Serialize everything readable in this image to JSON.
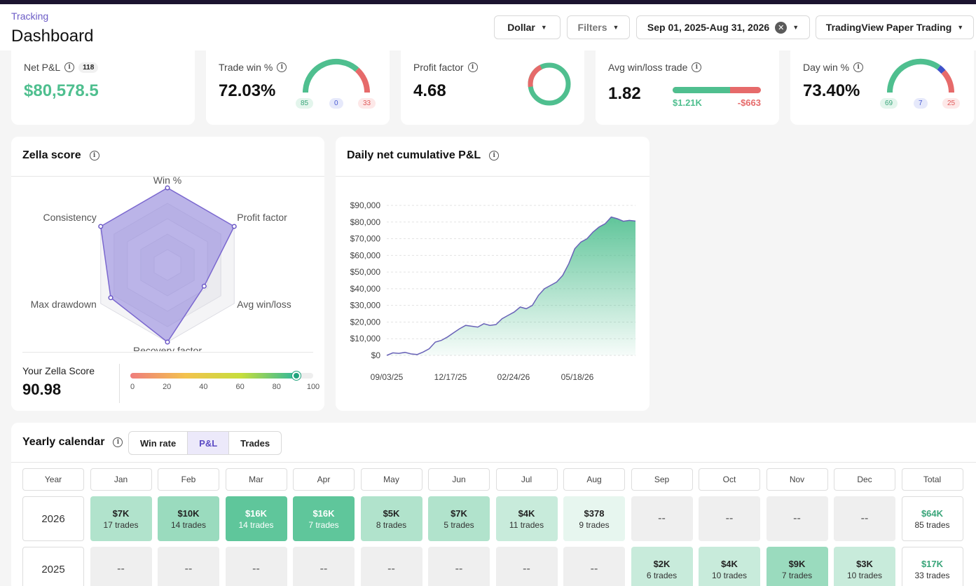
{
  "header": {
    "breadcrumb": "Tracking",
    "title": "Dashboard",
    "currency": "Dollar",
    "filters": "Filters",
    "date_range": "Sep 01, 2025-Aug 31, 2026",
    "account": "TradingView Paper Trading"
  },
  "stats": {
    "net_pnl": {
      "label": "Net P&L",
      "count": "118",
      "value": "$80,578.5"
    },
    "trade_win": {
      "label": "Trade win %",
      "value": "72.03%",
      "wins": "85",
      "breakeven": "0",
      "losses": "33",
      "win_fraction": 0.72
    },
    "profit_factor": {
      "label": "Profit factor",
      "value": "4.68",
      "profit_fraction": 0.82
    },
    "avg_win_loss": {
      "label": "Avg win/loss trade",
      "value": "1.82",
      "avg_win": "$1.21K",
      "avg_loss": "-$663",
      "win_fraction": 0.65
    },
    "day_win": {
      "label": "Day win %",
      "value": "73.40%",
      "wins": "69",
      "breakeven": "7",
      "losses": "25"
    }
  },
  "zella": {
    "title": "Zella score",
    "axes": [
      "Win %",
      "Profit factor",
      "Avg win/loss",
      "Recovery factor",
      "Max drawdown",
      "Consistency"
    ],
    "values": [
      1.0,
      1.0,
      0.55,
      1.0,
      0.85,
      1.0
    ],
    "score_label": "Your Zella Score",
    "score": "90.98",
    "score_value": 90.98,
    "scale_ticks": [
      "0",
      "20",
      "40",
      "60",
      "80",
      "100"
    ]
  },
  "chart_data": {
    "type": "area",
    "title": "Daily net cumulative P&L",
    "x_tick_labels": [
      "09/03/25",
      "12/17/25",
      "02/24/26",
      "05/18/26"
    ],
    "y_tick_labels": [
      "$0",
      "$10,000",
      "$20,000",
      "$30,000",
      "$40,000",
      "$50,000",
      "$60,000",
      "$70,000",
      "$80,000",
      "$90,000"
    ],
    "ylim": [
      0,
      90000
    ],
    "grid": true,
    "series": [
      {
        "values": [
          0,
          1500,
          1200,
          1800,
          900,
          500,
          2000,
          4000,
          8000,
          9000,
          11000,
          13500,
          16000,
          18000,
          17500,
          17000,
          19000,
          18000,
          18500,
          22000,
          24000,
          26000,
          29000,
          28000,
          30000,
          36000,
          40000,
          42000,
          44000,
          48000,
          55000,
          64000,
          68000,
          70000,
          74000,
          77000,
          79000,
          83000,
          82000,
          80500,
          81000,
          80578.5
        ]
      }
    ]
  },
  "calendar": {
    "title": "Yearly calendar",
    "toggles": [
      "Win rate",
      "P&L",
      "Trades"
    ],
    "active_toggle": "P&L",
    "columns": [
      "Year",
      "Jan",
      "Feb",
      "Mar",
      "Apr",
      "May",
      "Jun",
      "Jul",
      "Aug",
      "Sep",
      "Oct",
      "Nov",
      "Dec",
      "Total"
    ],
    "rows": [
      {
        "year": "2026",
        "cells": [
          {
            "value": "$7K",
            "trades": "17 trades",
            "tone": 2
          },
          {
            "value": "$10K",
            "trades": "14 trades",
            "tone": 3
          },
          {
            "value": "$16K",
            "trades": "14 trades",
            "tone": 5
          },
          {
            "value": "$16K",
            "trades": "7 trades",
            "tone": 5
          },
          {
            "value": "$5K",
            "trades": "8 trades",
            "tone": 2
          },
          {
            "value": "$7K",
            "trades": "5 trades",
            "tone": 2
          },
          {
            "value": "$4K",
            "trades": "11 trades",
            "tone": 1
          },
          {
            "value": "$378",
            "trades": "9 trades",
            "tone": 0
          },
          {
            "value": "--",
            "trades": "",
            "tone": -1
          },
          {
            "value": "--",
            "trades": "",
            "tone": -1
          },
          {
            "value": "--",
            "trades": "",
            "tone": -1
          },
          {
            "value": "--",
            "trades": "",
            "tone": -1
          }
        ],
        "total": {
          "value": "$64K",
          "trades": "85 trades"
        }
      },
      {
        "year": "2025",
        "cells": [
          {
            "value": "--",
            "trades": "",
            "tone": -1
          },
          {
            "value": "--",
            "trades": "",
            "tone": -1
          },
          {
            "value": "--",
            "trades": "",
            "tone": -1
          },
          {
            "value": "--",
            "trades": "",
            "tone": -1
          },
          {
            "value": "--",
            "trades": "",
            "tone": -1
          },
          {
            "value": "--",
            "trades": "",
            "tone": -1
          },
          {
            "value": "--",
            "trades": "",
            "tone": -1
          },
          {
            "value": "--",
            "trades": "",
            "tone": -1
          },
          {
            "value": "$2K",
            "trades": "6 trades",
            "tone": 1
          },
          {
            "value": "$4K",
            "trades": "10 trades",
            "tone": 1
          },
          {
            "value": "$9K",
            "trades": "7 trades",
            "tone": 3
          },
          {
            "value": "$3K",
            "trades": "10 trades",
            "tone": 1
          }
        ],
        "total": {
          "value": "$17K",
          "trades": "33 trades"
        }
      }
    ]
  },
  "colors": {
    "win": "#4fbf8f",
    "loss": "#e66a6a",
    "breakeven": "#3f51c9",
    "accent": "#7b68cf"
  }
}
